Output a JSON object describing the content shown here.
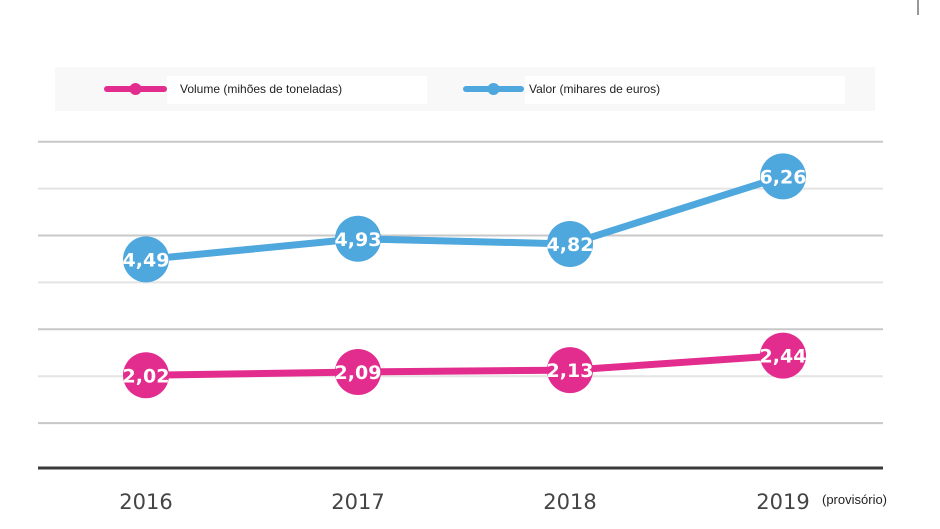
{
  "chart_data": {
    "type": "line",
    "categories": [
      "2016",
      "2017",
      "2018",
      "2019"
    ],
    "category_notes": [
      "",
      "",
      "",
      "(provisório)"
    ],
    "series": [
      {
        "name": "Volume (mihões de toneladas)",
        "values": [
          2.02,
          2.09,
          2.13,
          2.44
        ],
        "labels": [
          "2,02",
          "2,09",
          "2,13",
          "2,44"
        ],
        "color": "#e22d8f"
      },
      {
        "name": "Valor (mihares de euros)",
        "values": [
          4.49,
          4.93,
          4.82,
          6.26
        ],
        "labels": [
          "4,49",
          "4,93",
          "4,82",
          "6,26"
        ],
        "color": "#4ea7dd"
      }
    ],
    "ylim": [
      0,
      7
    ],
    "grid": true,
    "y_tick_labels_shown": false,
    "legend_position": "top"
  }
}
